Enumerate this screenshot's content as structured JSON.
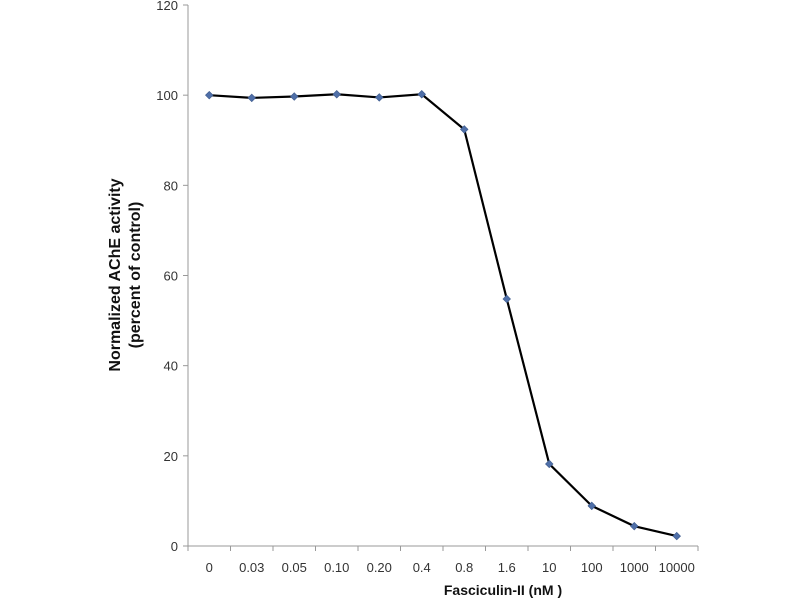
{
  "chart_data": {
    "type": "line",
    "title": "",
    "xlabel": "Fasciculin-II  (nM )",
    "ylabel_line1": "Normalized AChE activity",
    "ylabel_line2": "(percent of control)",
    "categories": [
      "0",
      "0.03",
      "0.05",
      "0.10",
      "0.20",
      "0.4",
      "0.8",
      "1.6",
      "10",
      "100",
      "1000",
      "10000"
    ],
    "series": [
      {
        "name": "AChE activity",
        "values": [
          100,
          99.4,
          99.7,
          100.2,
          99.5,
          100.2,
          92.4,
          54.8,
          18.2,
          8.9,
          4.4,
          2.2
        ]
      }
    ],
    "ylim": [
      0,
      120
    ],
    "yticks": [
      "0",
      "20",
      "40",
      "60",
      "80",
      "100",
      "120"
    ],
    "grid": false,
    "line_color": "#000000",
    "marker_color": "#4F6FA8"
  }
}
